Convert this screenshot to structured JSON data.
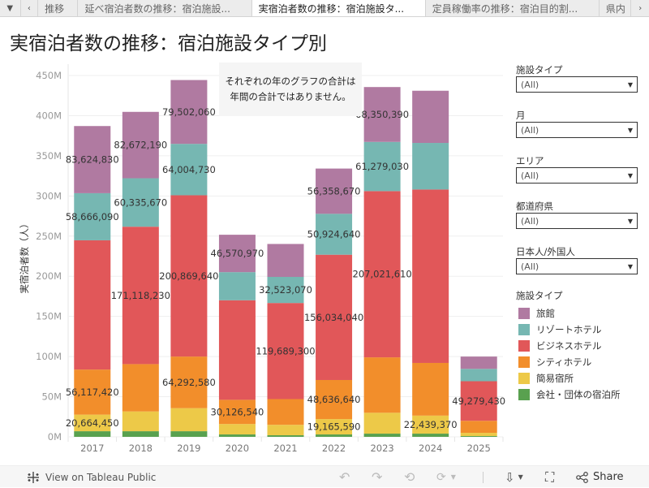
{
  "tabs": {
    "menu_icon": "▼",
    "prev_icon": "‹",
    "items": [
      {
        "label": "推移",
        "active": false
      },
      {
        "label": "延べ宿泊者数の推移：宿泊施設...",
        "active": false
      },
      {
        "label": "実宿泊者数の推移：宿泊施設タ...",
        "active": true
      },
      {
        "label": "定員稼働率の推移：宿泊目的割...",
        "active": false
      },
      {
        "label": "県内",
        "active": false
      }
    ],
    "next_icon": "›"
  },
  "title": "実宿泊者数の推移：宿泊施設タイプ別",
  "note": {
    "line1": "それぞれの年のグラフの合計は",
    "line2": "年間の合計ではありません。"
  },
  "filters": [
    {
      "label": "施設タイプ",
      "value": "(All)"
    },
    {
      "label": "月",
      "value": "(All)"
    },
    {
      "label": "エリア",
      "value": "(All)"
    },
    {
      "label": "都道府県",
      "value": "(All)"
    },
    {
      "label": "日本人/外国人",
      "value": "(All)"
    }
  ],
  "legend": {
    "title": "施設タイプ",
    "items": [
      {
        "label": "旅館",
        "color": "#b07aa1"
      },
      {
        "label": "リゾートホテル",
        "color": "#76b7b2"
      },
      {
        "label": "ビジネスホテル",
        "color": "#e15759"
      },
      {
        "label": "シティホテル",
        "color": "#f28e2b"
      },
      {
        "label": "簡易宿所",
        "color": "#edc948"
      },
      {
        "label": "会社・団体の宿泊所",
        "color": "#59a14f"
      }
    ]
  },
  "bottom": {
    "view_label": "View on Tableau Public",
    "share_label": "Share",
    "undo_icon": "↶",
    "redo_icon": "↷",
    "revert_icon": "⟲",
    "refresh_icon": "⟳",
    "download_icon": "⇩",
    "fullscreen_icon": "⛶",
    "share_icon": "⋘"
  },
  "chart_data": {
    "type": "bar",
    "stacked": true,
    "title": "実宿泊者数の推移：宿泊施設タイプ別",
    "xlabel": "",
    "ylabel": "実宿泊者数（人）",
    "ylim": [
      0,
      450
    ],
    "y_unit": "M",
    "yticks": [
      "0M",
      "50M",
      "100M",
      "150M",
      "200M",
      "250M",
      "300M",
      "350M",
      "400M",
      "450M"
    ],
    "grid": true,
    "legend_position": "right",
    "categories": [
      "2017",
      "2018",
      "2019",
      "2020",
      "2021",
      "2022",
      "2023",
      "2024",
      "2025"
    ],
    "series": [
      {
        "name": "会社・団体の宿泊所",
        "color": "#59a14f",
        "values": [
          7,
          7,
          7,
          3,
          2,
          3,
          4,
          4,
          1
        ]
      },
      {
        "name": "簡易宿所",
        "color": "#edc948",
        "values": [
          20.66445,
          24.6,
          28.7,
          13,
          13,
          19.16559,
          26,
          22.43937,
          4
        ]
      },
      {
        "name": "シティホテル",
        "color": "#f28e2b",
        "values": [
          56.11742,
          59,
          64.29258,
          30.12654,
          32,
          48.63664,
          69,
          65.6,
          15
        ]
      },
      {
        "name": "ビジネスホテル",
        "color": "#e15759",
        "values": [
          161,
          171.11823,
          200.86964,
          124,
          119.6893,
          156.03404,
          207.02161,
          216,
          49.27943
        ]
      },
      {
        "name": "リゾートホテル",
        "color": "#76b7b2",
        "values": [
          58.66609,
          60.33567,
          64.00473,
          35,
          32.52307,
          50.92464,
          61.27903,
          58,
          15.4
        ]
      },
      {
        "name": "旅館",
        "color": "#b07aa1",
        "values": [
          83.62483,
          82.67219,
          79.50206,
          46.57097,
          41,
          56.35867,
          68.35039,
          65,
          15.3
        ]
      }
    ],
    "data_labels": [
      {
        "category": "2017",
        "series": "旅館",
        "text": "83,624,830"
      },
      {
        "category": "2017",
        "series": "リゾートホテル",
        "text": "58,666,090"
      },
      {
        "category": "2017",
        "series": "シティホテル",
        "text": "56,117,420"
      },
      {
        "category": "2017",
        "series": "簡易宿所",
        "text": "20,664,450"
      },
      {
        "category": "2018",
        "series": "旅館",
        "text": "82,672,190"
      },
      {
        "category": "2018",
        "series": "リゾートホテル",
        "text": "60,335,670"
      },
      {
        "category": "2018",
        "series": "ビジネスホテル",
        "text": "171,118,230"
      },
      {
        "category": "2019",
        "series": "旅館",
        "text": "79,502,060"
      },
      {
        "category": "2019",
        "series": "リゾートホテル",
        "text": "64,004,730"
      },
      {
        "category": "2019",
        "series": "ビジネスホテル",
        "text": "200,869,640"
      },
      {
        "category": "2019",
        "series": "シティホテル",
        "text": "64,292,580"
      },
      {
        "category": "2020",
        "series": "旅館",
        "text": "46,570,970"
      },
      {
        "category": "2020",
        "series": "シティホテル",
        "text": "30,126,540"
      },
      {
        "category": "2021",
        "series": "リゾートホテル",
        "text": "32,523,070"
      },
      {
        "category": "2021",
        "series": "ビジネスホテル",
        "text": "119,689,300"
      },
      {
        "category": "2022",
        "series": "旅館",
        "text": "56,358,670"
      },
      {
        "category": "2022",
        "series": "リゾートホテル",
        "text": "50,924,640"
      },
      {
        "category": "2022",
        "series": "ビジネスホテル",
        "text": "156,034,040"
      },
      {
        "category": "2022",
        "series": "シティホテル",
        "text": "48,636,640"
      },
      {
        "category": "2022",
        "series": "簡易宿所",
        "text": "19,165,590"
      },
      {
        "category": "2023",
        "series": "旅館",
        "text": "68,350,390"
      },
      {
        "category": "2023",
        "series": "リゾートホテル",
        "text": "61,279,030"
      },
      {
        "category": "2023",
        "series": "ビジネスホテル",
        "text": "207,021,610"
      },
      {
        "category": "2024",
        "series": "簡易宿所",
        "text": "22,439,370"
      },
      {
        "category": "2025",
        "series": "ビジネスホテル",
        "text": "49,279,430"
      }
    ]
  }
}
